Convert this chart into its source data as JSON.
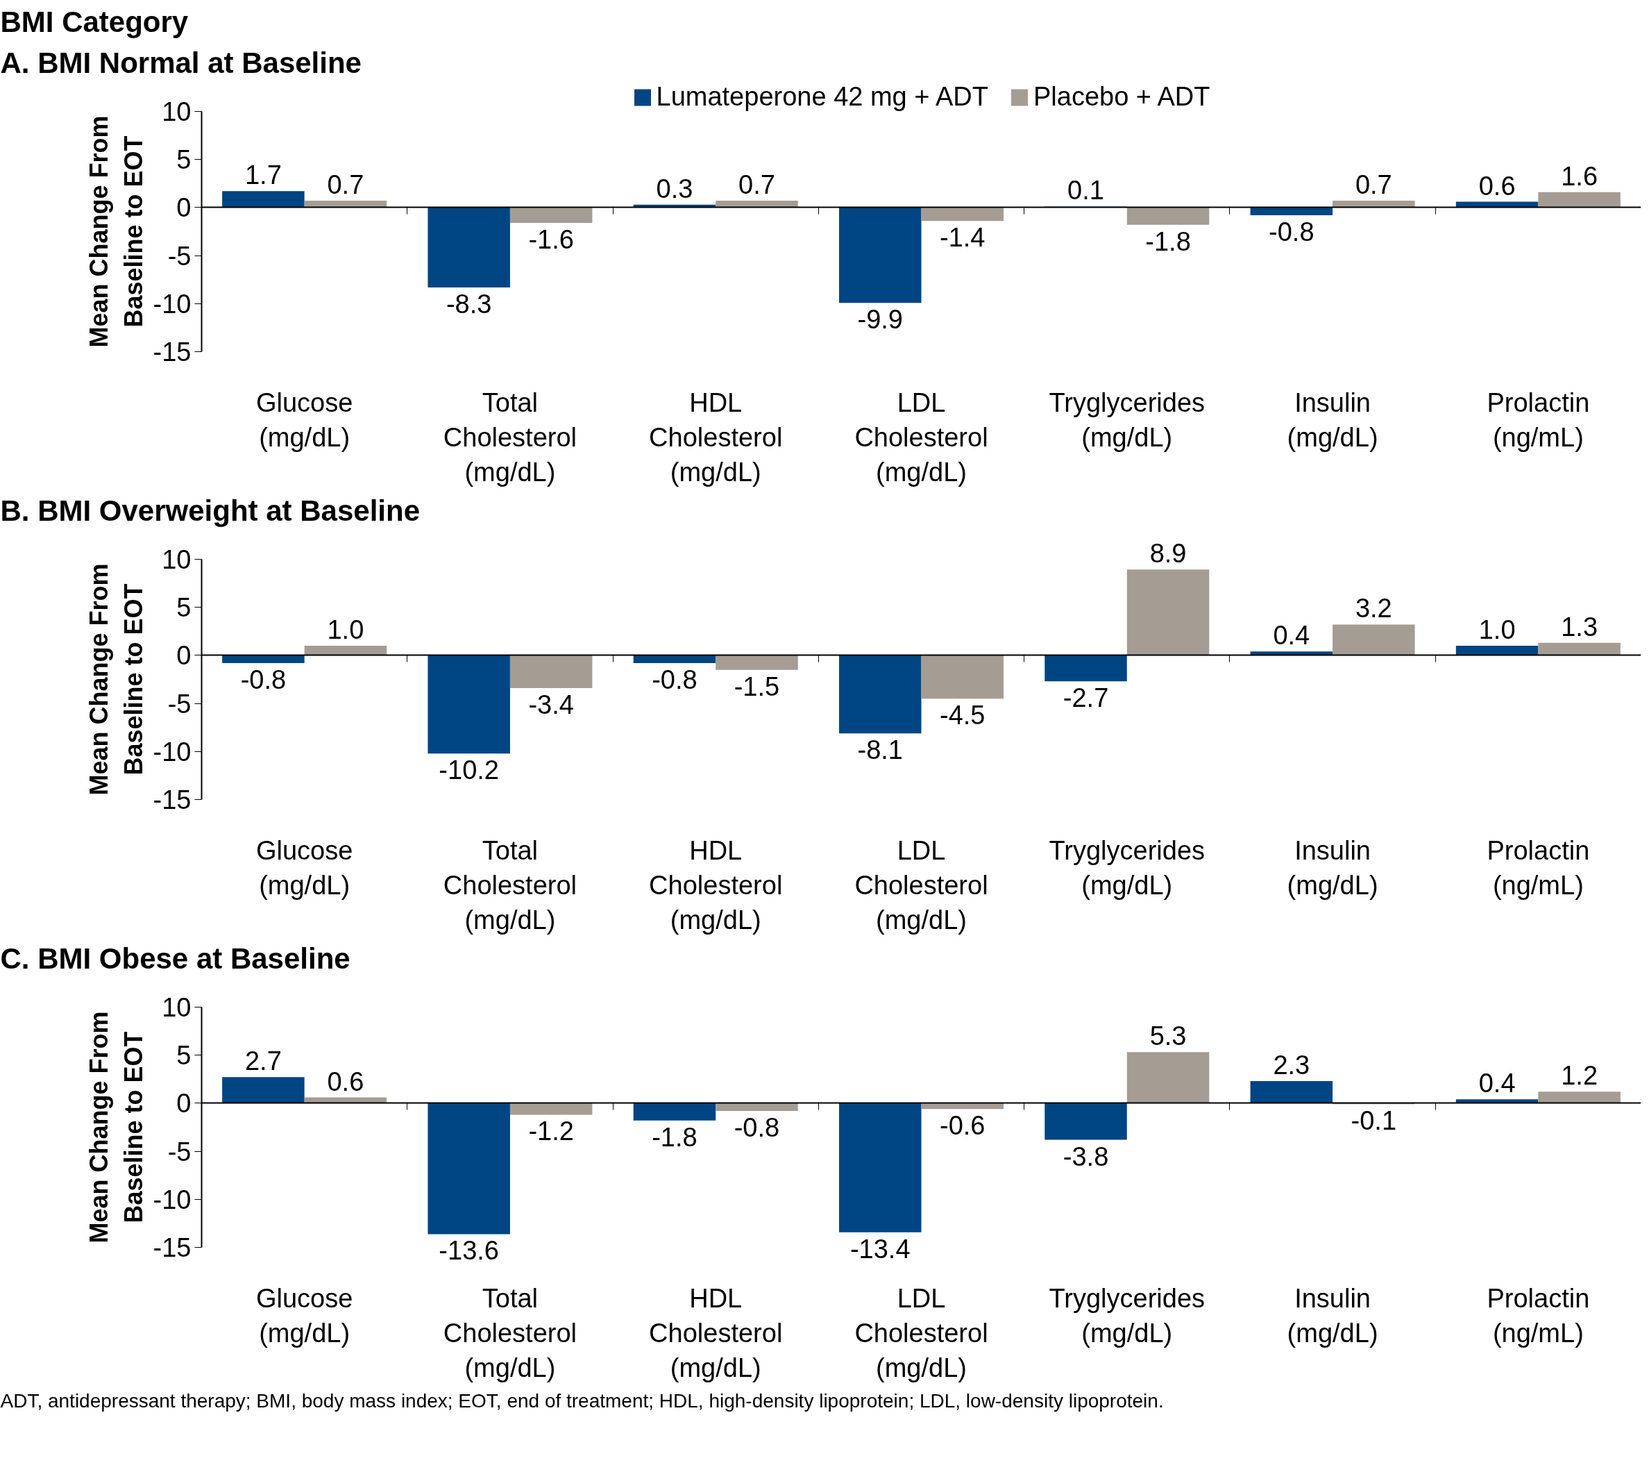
{
  "chart_data": [
    {
      "type": "bar",
      "title": "BMI Category",
      "subtitle": "A. BMI Normal at Baseline",
      "ylabel": "Mean Change From\nBaseline to EOT",
      "categories": [
        "Glucose\n(mg/dL)",
        "Total\nCholesterol\n(mg/dL)",
        "HDL\nCholesterol\n(mg/dL)",
        "LDL\nCholesterol\n(mg/dL)",
        "Tryglycerides\n(mg/dL)",
        "Insulin\n(mg/dL)",
        "Prolactin\n(ng/mL)"
      ],
      "series": [
        {
          "name": "Lumateperone 42 mg + ADT",
          "color": "#004583",
          "values": [
            1.7,
            -8.3,
            0.3,
            -9.9,
            0.1,
            -0.8,
            0.6
          ],
          "value_labels": [
            "1.7",
            "-8.3",
            "0.3",
            "-9.9",
            "0.1",
            "-0.8",
            "0.6"
          ]
        },
        {
          "name": "Placebo + ADT",
          "color": "#a59c94",
          "values": [
            0.7,
            -1.6,
            0.7,
            -1.4,
            -1.8,
            0.7,
            1.6
          ],
          "value_labels": [
            "0.7",
            "-1.6",
            "0.7",
            "-1.4",
            "-1.8",
            "0.7",
            "1.6"
          ]
        }
      ],
      "ylim": [
        -15,
        10
      ],
      "yticks": [
        -15,
        -10,
        -5,
        0,
        5,
        10
      ],
      "legend": "top"
    },
    {
      "type": "bar",
      "title": "B. BMI Overweight at Baseline",
      "ylabel": "Mean Change From\nBaseline to EOT",
      "categories": [
        "Glucose\n(mg/dL)",
        "Total\nCholesterol\n(mg/dL)",
        "HDL\nCholesterol\n(mg/dL)",
        "LDL\nCholesterol\n(mg/dL)",
        "Tryglycerides\n(mg/dL)",
        "Insulin\n(mg/dL)",
        "Prolactin\n(ng/mL)"
      ],
      "series": [
        {
          "color": "#004583",
          "values": [
            -0.8,
            -10.2,
            -0.8,
            -8.1,
            -2.7,
            0.4,
            1.0
          ],
          "value_labels": [
            "-0.8",
            "-10.2",
            "-0.8",
            "-8.1",
            "-2.7",
            "0.4",
            "1.0"
          ]
        },
        {
          "color": "#a59c94",
          "values": [
            1.0,
            -3.4,
            -1.5,
            -4.5,
            8.9,
            3.2,
            1.3
          ],
          "value_labels": [
            "1.0",
            "-3.4",
            "-1.5",
            "-4.5",
            "8.9",
            "3.2",
            "1.3"
          ]
        }
      ],
      "ylim": [
        -15,
        10
      ],
      "yticks": [
        -15,
        -10,
        -5,
        0,
        5,
        10
      ]
    },
    {
      "type": "bar",
      "title": "C. BMI Obese at Baseline",
      "ylabel": "Mean Change From\nBaseline to EOT",
      "categories": [
        "Glucose\n(mg/dL)",
        "Total\nCholesterol\n(mg/dL)",
        "HDL\nCholesterol\n(mg/dL)",
        "LDL\nCholesterol\n(mg/dL)",
        "Tryglycerides\n(mg/dL)",
        "Insulin\n(mg/dL)",
        "Prolactin\n(ng/mL)"
      ],
      "series": [
        {
          "color": "#004583",
          "values": [
            2.7,
            -13.6,
            -1.8,
            -13.4,
            -3.8,
            2.3,
            0.4
          ],
          "value_labels": [
            "2.7",
            "-13.6",
            "-1.8",
            "-13.4",
            "-3.8",
            "2.3",
            "0.4"
          ]
        },
        {
          "color": "#a59c94",
          "values": [
            0.6,
            -1.2,
            -0.8,
            -0.6,
            5.3,
            -0.1,
            1.2
          ],
          "value_labels": [
            "0.6",
            "-1.2",
            "-0.8",
            "-0.6",
            "5.3",
            "-0.1",
            "1.2"
          ]
        }
      ],
      "ylim": [
        -15,
        10
      ],
      "yticks": [
        -15,
        -10,
        -5,
        0,
        5,
        10
      ],
      "annotations": [
        "ADT, antidepressant therapy; BMI, body mass index; EOT, end of treatment; HDL, high-density lipoprotein; LDL, low-density lipoprotein."
      ]
    }
  ]
}
